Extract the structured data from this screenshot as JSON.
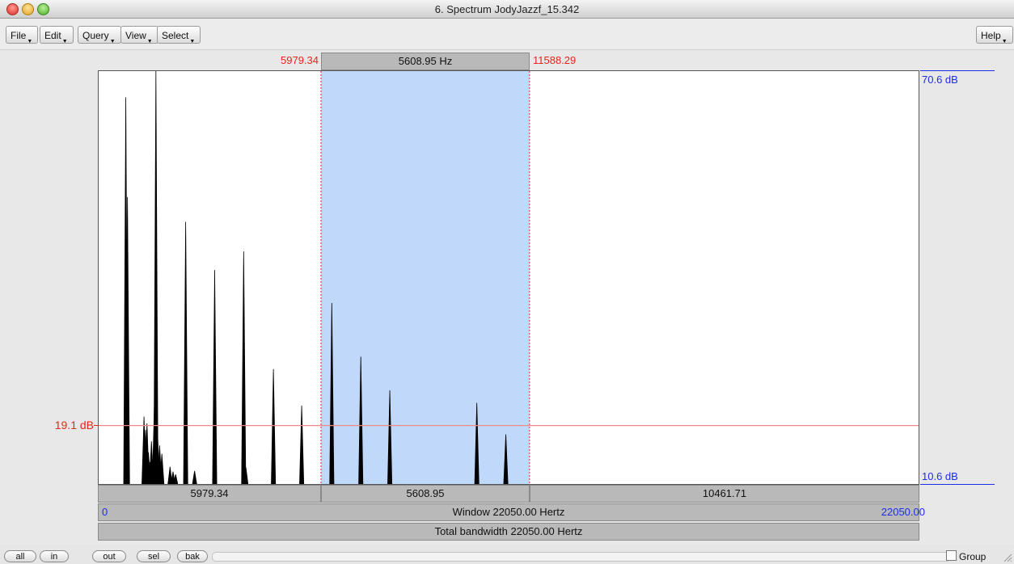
{
  "window": {
    "title": "6. Spectrum JodyJazzf_15.342"
  },
  "menu": {
    "file": "File",
    "edit": "Edit",
    "query": "Query",
    "view": "View",
    "select": "Select",
    "help": "Help"
  },
  "selection": {
    "left_freq": "5979.34",
    "width_label": "5608.95 Hz",
    "right_freq": "11588.29"
  },
  "y_axis": {
    "top": "70.6 dB",
    "bottom": "10.6 dB",
    "cursor": "19.1 dB",
    "min_db": 10.6,
    "max_db": 70.6,
    "cursor_db": 19.1
  },
  "bars": {
    "seg_left": "5979.34",
    "seg_mid": "5608.95",
    "seg_right": "10461.71",
    "window_min": "0",
    "window_label": "Window 22050.00 Hertz",
    "window_max": "22050.00",
    "total": "Total bandwidth 22050.00 Hertz"
  },
  "zoom_buttons": {
    "all": "all",
    "in": "in",
    "out": "out",
    "sel": "sel",
    "bak": "bak"
  },
  "group": {
    "label": "Group",
    "checked": false
  },
  "colors": {
    "selection": "#c0d9fb",
    "cursor_line": "#f08a84",
    "label_red": "#e8231b",
    "label_blue": "#1b2ee8"
  },
  "chart_data": {
    "type": "line",
    "x_range": [
      0,
      22050
    ],
    "view_range": [
      0,
      22050
    ],
    "selection_range": [
      5979.34,
      11588.29
    ],
    "y_range": [
      10.6,
      70.6
    ],
    "peaks": [
      {
        "x": 730,
        "y": 66.8
      },
      {
        "x": 775,
        "y": 52.3
      },
      {
        "x": 1220,
        "y": 20.4
      },
      {
        "x": 1260,
        "y": 18.5
      },
      {
        "x": 1300,
        "y": 19.4
      },
      {
        "x": 1340,
        "y": 15.2
      },
      {
        "x": 1380,
        "y": 13.8
      },
      {
        "x": 1420,
        "y": 16.8
      },
      {
        "x": 1460,
        "y": 14.2
      },
      {
        "x": 1500,
        "y": 22.3
      },
      {
        "x": 1540,
        "y": 70.6
      },
      {
        "x": 1580,
        "y": 18.6
      },
      {
        "x": 1640,
        "y": 16.2
      },
      {
        "x": 1700,
        "y": 15.0
      },
      {
        "x": 1920,
        "y": 13.1
      },
      {
        "x": 2000,
        "y": 12.4
      },
      {
        "x": 2070,
        "y": 12.0
      },
      {
        "x": 2340,
        "y": 48.7
      },
      {
        "x": 2580,
        "y": 12.5
      },
      {
        "x": 3120,
        "y": 41.7
      },
      {
        "x": 3900,
        "y": 44.4
      },
      {
        "x": 3960,
        "y": 13.0
      },
      {
        "x": 4700,
        "y": 27.3
      },
      {
        "x": 5460,
        "y": 22.0
      },
      {
        "x": 6270,
        "y": 36.9
      },
      {
        "x": 7050,
        "y": 29.1
      },
      {
        "x": 7830,
        "y": 24.2
      },
      {
        "x": 10170,
        "y": 22.4
      },
      {
        "x": 10950,
        "y": 17.8
      }
    ]
  }
}
